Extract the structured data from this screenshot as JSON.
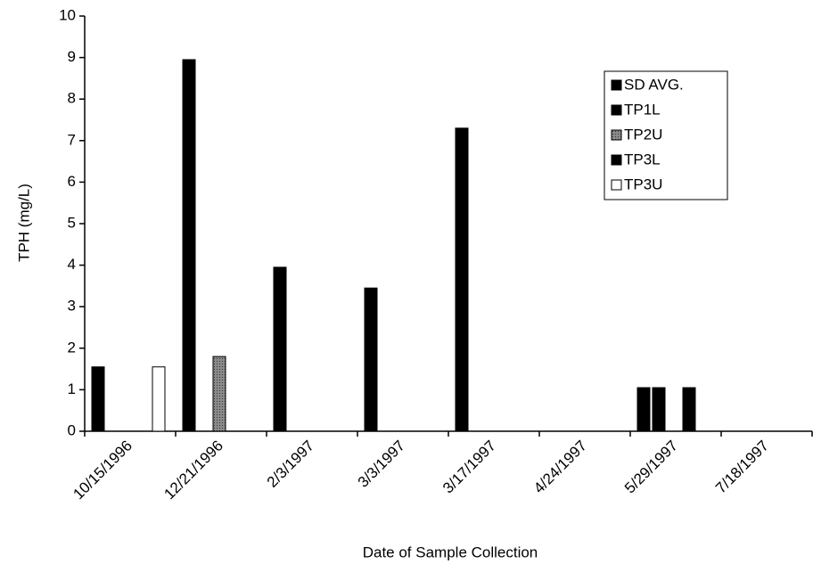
{
  "chart_data": {
    "type": "bar",
    "x_label": "Date of Sample Collection",
    "y_label": "TPH (mg/L)",
    "categories": [
      "10/15/1996",
      "12/21/1996",
      "2/3/1997",
      "3/3/1997",
      "3/17/1997",
      "4/24/1997",
      "5/29/1997",
      "7/18/1997"
    ],
    "series": [
      {
        "name": "SD AVG.",
        "color": "#000000",
        "values": [
          1.55,
          8.95,
          3.95,
          3.45,
          7.3,
          null,
          1.05,
          null
        ]
      },
      {
        "name": "TP1L",
        "color": "#000000",
        "values": [
          null,
          null,
          null,
          null,
          null,
          null,
          1.05,
          null
        ]
      },
      {
        "name": "TP2U",
        "color": "#8a8a8a",
        "values": [
          null,
          1.8,
          null,
          null,
          null,
          null,
          null,
          null
        ]
      },
      {
        "name": "TP3L",
        "color": "#000000",
        "values": [
          null,
          null,
          null,
          null,
          null,
          null,
          1.05,
          null
        ]
      },
      {
        "name": "TP3U",
        "color": "#ffffff",
        "values": [
          1.55,
          null,
          null,
          null,
          null,
          null,
          null,
          null
        ]
      }
    ],
    "ylim": [
      0,
      10
    ],
    "yticks": [
      0,
      1,
      2,
      3,
      4,
      5,
      6,
      7,
      8,
      9,
      10
    ],
    "grid": false,
    "legend": "upper right"
  }
}
